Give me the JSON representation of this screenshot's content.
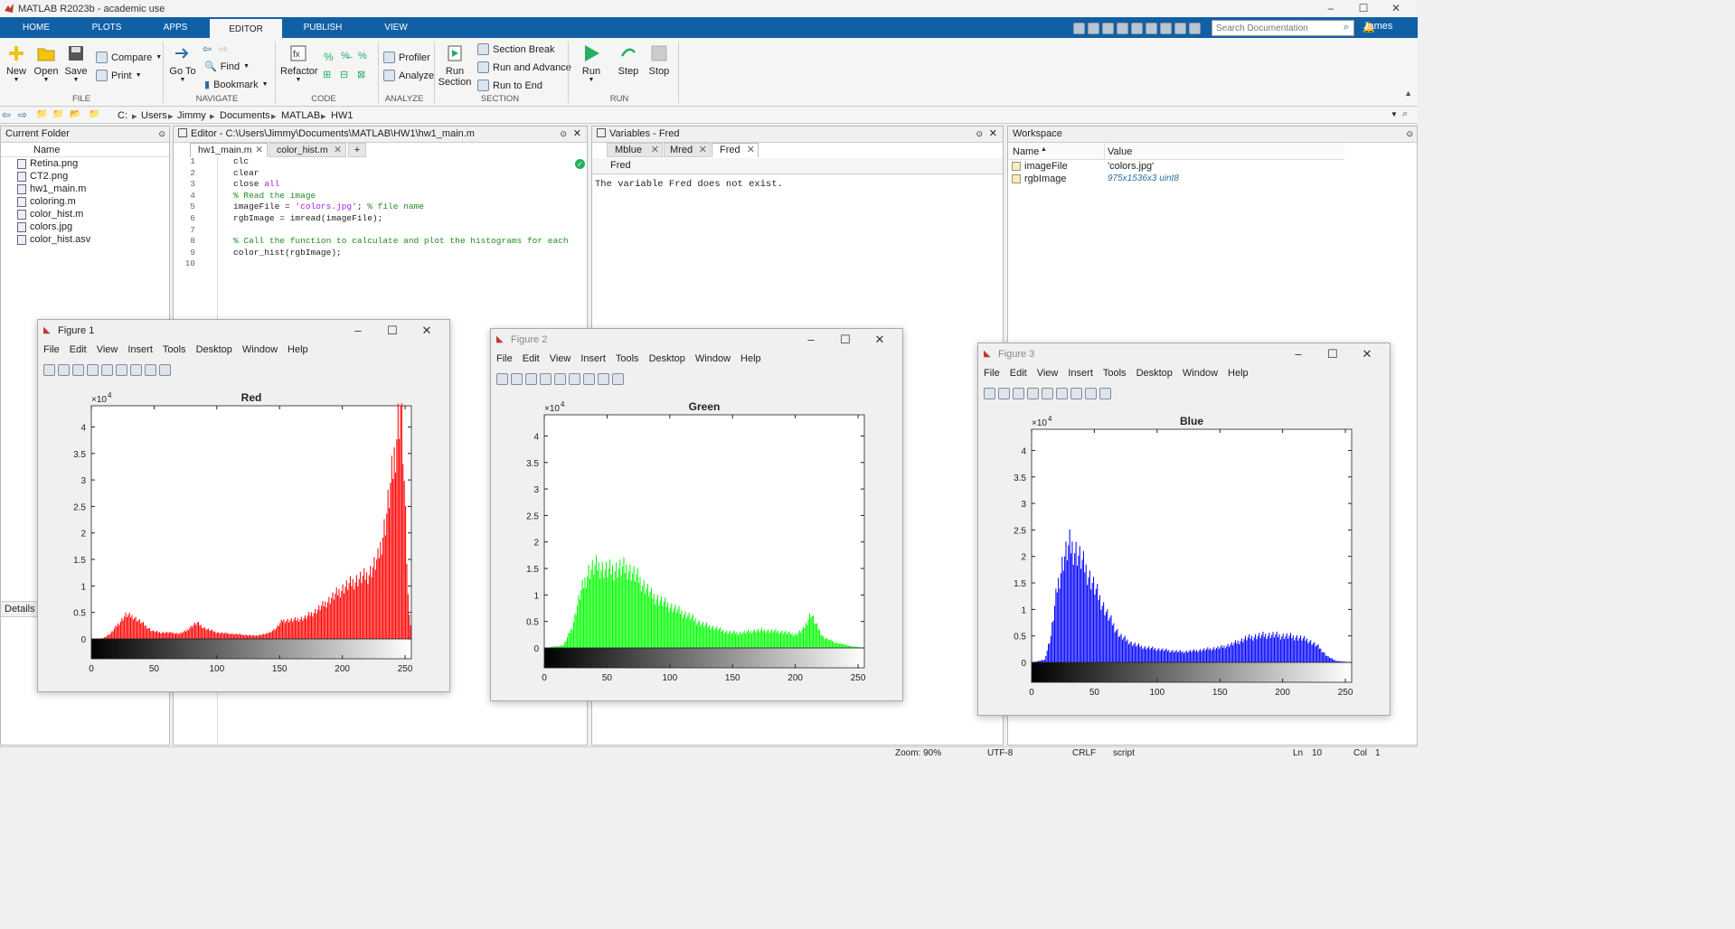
{
  "window": {
    "title": "MATLAB R2023b - academic use"
  },
  "tabs": [
    "HOME",
    "PLOTS",
    "APPS",
    "EDITOR",
    "PUBLISH",
    "VIEW"
  ],
  "search": {
    "placeholder": "Search Documentation"
  },
  "user": "James",
  "ribbon": {
    "file": {
      "new": "New",
      "open": "Open",
      "save": "Save",
      "compare": "Compare",
      "print": "Print",
      "group": "FILE"
    },
    "navigate": {
      "goto": "Go To",
      "find": "Find",
      "bookmark": "Bookmark",
      "group": "NAVIGATE"
    },
    "code": {
      "refactor": "Refactor",
      "group": "CODE"
    },
    "analyze": {
      "profiler": "Profiler",
      "analyze": "Analyze",
      "group": "ANALYZE"
    },
    "section": {
      "run_section": "Run Section",
      "section_break": "Section Break",
      "run_advance": "Run and Advance",
      "run_end": "Run to End",
      "group": "SECTION"
    },
    "run": {
      "run": "Run",
      "step": "Step",
      "stop": "Stop",
      "group": "RUN"
    }
  },
  "path": [
    "C:",
    "Users",
    "Jimmy",
    "Documents",
    "MATLAB",
    "HW1"
  ],
  "current_folder": {
    "title": "Current Folder",
    "col": "Name",
    "files": [
      "Retina.png",
      "CT2.png",
      "hw1_main.m",
      "coloring.m",
      "color_hist.m",
      "colors.jpg",
      "color_hist.asv"
    ],
    "details": "Details"
  },
  "editor": {
    "title": "Editor - C:\\Users\\Jimmy\\Documents\\MATLAB\\HW1\\hw1_main.m",
    "tabs": [
      "hw1_main.m",
      "color_hist.m"
    ],
    "lines": [
      "1",
      "2",
      "3",
      "4",
      "5",
      "6",
      "7",
      "8",
      "9",
      "10"
    ]
  },
  "variables": {
    "title": "Variables - Fred",
    "tabs": [
      "Mblue",
      "Mred",
      "Fred"
    ],
    "var": "Fred",
    "msg": "The variable Fred does not exist."
  },
  "workspace": {
    "title": "Workspace",
    "col_name": "Name",
    "col_value": "Value",
    "rows": [
      {
        "name": "imageFile",
        "value": "'colors.jpg'"
      },
      {
        "name": "rgbImage",
        "value": "975x1536x3 uint8"
      }
    ]
  },
  "figure_menu": [
    "File",
    "Edit",
    "View",
    "Insert",
    "Tools",
    "Desktop",
    "Window",
    "Help"
  ],
  "figures": [
    {
      "title": "Figure 1"
    },
    {
      "title": "Figure 2"
    },
    {
      "title": "Figure 3"
    }
  ],
  "status": {
    "zoom": "Zoom: 90%",
    "enc": "UTF-8",
    "eol": "CRLF",
    "type": "script",
    "ln": "Ln",
    "ln_v": "10",
    "col": "Col",
    "col_v": "1"
  },
  "chart_data": [
    {
      "type": "bar",
      "title": "Red",
      "color": "#ff0000",
      "exponent": "×10",
      "exponent_power": "4",
      "xlim": [
        0,
        255
      ],
      "ylim": [
        0,
        4.4
      ],
      "xticks": [
        0,
        50,
        100,
        150,
        200,
        250
      ],
      "yticks": [
        0,
        0.5,
        1,
        1.5,
        2,
        2.5,
        3,
        3.5,
        4
      ],
      "profile": [
        [
          0,
          0
        ],
        [
          8,
          0
        ],
        [
          15,
          0.1
        ],
        [
          20,
          0.25
        ],
        [
          27,
          0.45
        ],
        [
          33,
          0.42
        ],
        [
          40,
          0.3
        ],
        [
          48,
          0.15
        ],
        [
          55,
          0.12
        ],
        [
          62,
          0.12
        ],
        [
          70,
          0.1
        ],
        [
          75,
          0.15
        ],
        [
          80,
          0.25
        ],
        [
          84,
          0.3
        ],
        [
          90,
          0.2
        ],
        [
          100,
          0.12
        ],
        [
          110,
          0.1
        ],
        [
          120,
          0.08
        ],
        [
          130,
          0.06
        ],
        [
          140,
          0.1
        ],
        [
          147,
          0.2
        ],
        [
          152,
          0.35
        ],
        [
          160,
          0.35
        ],
        [
          170,
          0.4
        ],
        [
          180,
          0.55
        ],
        [
          190,
          0.75
        ],
        [
          200,
          0.95
        ],
        [
          210,
          1.1
        ],
        [
          220,
          1.2
        ],
        [
          228,
          1.5
        ],
        [
          234,
          2.2
        ],
        [
          240,
          3.2
        ],
        [
          244,
          4.1
        ],
        [
          246,
          4.4
        ],
        [
          248,
          3.6
        ],
        [
          250,
          2.2
        ],
        [
          252,
          0.8
        ],
        [
          255,
          0
        ]
      ]
    },
    {
      "type": "bar",
      "title": "Green",
      "color": "#00ff00",
      "exponent": "×10",
      "exponent_power": "4",
      "xlim": [
        0,
        255
      ],
      "ylim": [
        0,
        4.4
      ],
      "xticks": [
        0,
        50,
        100,
        150,
        200,
        250
      ],
      "yticks": [
        0,
        0.5,
        1,
        1.5,
        2,
        2.5,
        3,
        3.5,
        4
      ],
      "profile": [
        [
          0,
          0
        ],
        [
          15,
          0.05
        ],
        [
          22,
          0.4
        ],
        [
          28,
          1.0
        ],
        [
          35,
          1.45
        ],
        [
          42,
          1.55
        ],
        [
          50,
          1.45
        ],
        [
          58,
          1.5
        ],
        [
          66,
          1.5
        ],
        [
          75,
          1.3
        ],
        [
          85,
          1.0
        ],
        [
          95,
          0.85
        ],
        [
          105,
          0.72
        ],
        [
          115,
          0.6
        ],
        [
          125,
          0.45
        ],
        [
          135,
          0.38
        ],
        [
          145,
          0.3
        ],
        [
          155,
          0.28
        ],
        [
          165,
          0.32
        ],
        [
          175,
          0.33
        ],
        [
          190,
          0.3
        ],
        [
          200,
          0.25
        ],
        [
          206,
          0.35
        ],
        [
          212,
          0.65
        ],
        [
          216,
          0.45
        ],
        [
          222,
          0.2
        ],
        [
          232,
          0.1
        ],
        [
          245,
          0.03
        ],
        [
          255,
          0
        ]
      ]
    },
    {
      "type": "bar",
      "title": "Blue",
      "color": "#0000ff",
      "exponent": "×10",
      "exponent_power": "4",
      "xlim": [
        0,
        255
      ],
      "ylim": [
        0,
        4.4
      ],
      "xticks": [
        0,
        50,
        100,
        150,
        200,
        250
      ],
      "yticks": [
        0,
        0.5,
        1,
        1.5,
        2,
        2.5,
        3,
        3.5,
        4
      ],
      "profile": [
        [
          0,
          0
        ],
        [
          10,
          0.05
        ],
        [
          15,
          0.5
        ],
        [
          20,
          1.4
        ],
        [
          25,
          1.95
        ],
        [
          30,
          2.2
        ],
        [
          35,
          2.1
        ],
        [
          42,
          1.8
        ],
        [
          50,
          1.4
        ],
        [
          60,
          0.9
        ],
        [
          70,
          0.5
        ],
        [
          80,
          0.35
        ],
        [
          90,
          0.28
        ],
        [
          100,
          0.25
        ],
        [
          110,
          0.22
        ],
        [
          120,
          0.2
        ],
        [
          130,
          0.22
        ],
        [
          140,
          0.25
        ],
        [
          150,
          0.28
        ],
        [
          160,
          0.35
        ],
        [
          170,
          0.45
        ],
        [
          180,
          0.5
        ],
        [
          190,
          0.52
        ],
        [
          200,
          0.5
        ],
        [
          210,
          0.48
        ],
        [
          220,
          0.42
        ],
        [
          228,
          0.3
        ],
        [
          235,
          0.12
        ],
        [
          242,
          0.03
        ],
        [
          255,
          0
        ]
      ]
    }
  ]
}
